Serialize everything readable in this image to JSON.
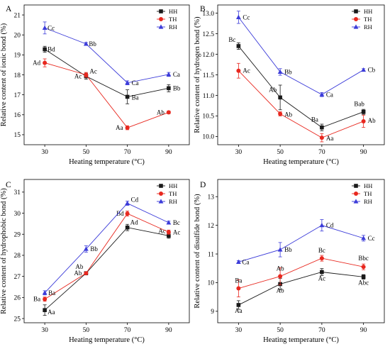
{
  "chart_data": [
    {
      "type": "line",
      "panel_label": "A",
      "x": [
        30,
        50,
        70,
        90
      ],
      "xlabel": "Heating temperature (°C)",
      "ylabel": "Relative content of ionic bond (%)",
      "ylim": [
        14.5,
        21.5
      ],
      "yticks": [
        "15",
        "16",
        "17",
        "18",
        "19",
        "20",
        "21"
      ],
      "series": [
        {
          "name": "HH",
          "values": [
            19.28,
            17.93,
            16.9,
            17.33
          ],
          "errors": [
            0.15,
            0.15,
            0.35,
            0.18
          ],
          "labels": [
            "Bd",
            "Ac",
            "Ba",
            "Bb"
          ],
          "color": "#1a1a1a",
          "marker": "square"
        },
        {
          "name": "TH",
          "values": [
            18.6,
            18.0,
            15.35,
            16.12
          ],
          "errors": [
            0.2,
            0.12,
            0.1,
            0.07
          ],
          "labels": [
            "Ad",
            "Ac",
            "Aa",
            "Ab"
          ],
          "color": "#e8281f",
          "marker": "circle"
        },
        {
          "name": "RH",
          "values": [
            20.35,
            19.55,
            17.6,
            18.02
          ],
          "errors": [
            0.3,
            0.07,
            0.1,
            0.1
          ],
          "labels": [
            "Cc",
            "Bb",
            "Ca",
            "Ca"
          ],
          "color": "#3b3bd9",
          "marker": "triangle"
        }
      ],
      "legend": "top-right"
    },
    {
      "type": "line",
      "panel_label": "B",
      "x": [
        30,
        50,
        70,
        90
      ],
      "xlabel": "Heating temperature (°C)",
      "ylabel": "Relative content of hydrogen bond (%)",
      "ylim": [
        9.8,
        13.2
      ],
      "yticks": [
        "10.0",
        "10.5",
        "11.0",
        "11.5",
        "12.0",
        "12.5",
        "13.0"
      ],
      "series": [
        {
          "name": "HH",
          "values": [
            12.2,
            10.95,
            10.22,
            10.6
          ],
          "errors": [
            0.08,
            0.3,
            0.08,
            0.06
          ],
          "labels": [
            "Bc",
            "Ab",
            "Ba",
            "Bab"
          ],
          "color": "#1a1a1a",
          "marker": "square"
        },
        {
          "name": "TH",
          "values": [
            11.6,
            10.55,
            9.97,
            10.37
          ],
          "errors": [
            0.18,
            0.05,
            0.1,
            0.15
          ],
          "labels": [
            "Ac",
            "Ab",
            "Aa",
            "Ab"
          ],
          "color": "#e8281f",
          "marker": "circle"
        },
        {
          "name": "RH",
          "values": [
            12.9,
            11.57,
            11.02,
            11.62
          ],
          "errors": [
            0.15,
            0.08,
            0.05,
            0.03
          ],
          "labels": [
            "Cc",
            "Bb",
            "Ca",
            "Cb"
          ],
          "color": "#3b3bd9",
          "marker": "triangle"
        }
      ],
      "legend": "top-right"
    },
    {
      "type": "line",
      "panel_label": "C",
      "x": [
        30,
        50,
        70,
        90
      ],
      "xlabel": "Heating temperature (°C)",
      "ylabel": "Relative content of hydrophobic bond (%)",
      "ylim": [
        24.8,
        31.6
      ],
      "yticks": [
        "25",
        "26",
        "27",
        "28",
        "29",
        "30",
        "31"
      ],
      "series": [
        {
          "name": "HH",
          "values": [
            25.4,
            27.15,
            29.32,
            28.93
          ],
          "errors": [
            0.25,
            0.05,
            0.15,
            0.12
          ],
          "labels": [
            "Aa",
            "Ab",
            "Ad",
            "Ac"
          ],
          "color": "#1a1a1a",
          "marker": "square"
        },
        {
          "name": "TH",
          "values": [
            25.92,
            27.15,
            29.98,
            29.1
          ],
          "errors": [
            0.1,
            0.05,
            0.12,
            0.1
          ],
          "labels": [
            "Ba",
            "Ab",
            "Bd",
            "Ac"
          ],
          "color": "#e8281f",
          "marker": "circle"
        },
        {
          "name": "RH",
          "values": [
            26.22,
            28.3,
            30.47,
            29.55
          ],
          "errors": [
            0.1,
            0.15,
            0.1,
            0.07
          ],
          "labels": [
            "Ba",
            "Bb",
            "Cd",
            "Bc"
          ],
          "color": "#3b3bd9",
          "marker": "triangle"
        }
      ],
      "legend": "top-right"
    },
    {
      "type": "line",
      "panel_label": "D",
      "x": [
        30,
        50,
        70,
        90
      ],
      "xlabel": "Heating temperature (°C)",
      "ylabel": "Relative content of disulfide bond (%)",
      "ylim": [
        8.6,
        13.6
      ],
      "yticks": [
        "9",
        "10",
        "11",
        "12",
        "13"
      ],
      "series": [
        {
          "name": "HH",
          "values": [
            9.22,
            9.95,
            10.37,
            10.2
          ],
          "errors": [
            0.15,
            0.2,
            0.12,
            0.08
          ],
          "labels": [
            "Aa",
            "Ab",
            "Ac",
            "Abc"
          ],
          "color": "#1a1a1a",
          "marker": "square"
        },
        {
          "name": "TH",
          "values": [
            9.8,
            10.22,
            10.85,
            10.55
          ],
          "errors": [
            0.3,
            0.3,
            0.1,
            0.1
          ],
          "labels": [
            "Ba",
            "Ab",
            "Bc",
            "Bbc"
          ],
          "color": "#e8281f",
          "marker": "circle"
        },
        {
          "name": "RH",
          "values": [
            10.72,
            11.15,
            12.0,
            11.55
          ],
          "errors": [
            0.05,
            0.25,
            0.2,
            0.1
          ],
          "labels": [
            "Ca",
            "Bb",
            "Cd",
            "Cc"
          ],
          "color": "#3b3bd9",
          "marker": "triangle"
        }
      ],
      "legend": "top-right"
    }
  ]
}
